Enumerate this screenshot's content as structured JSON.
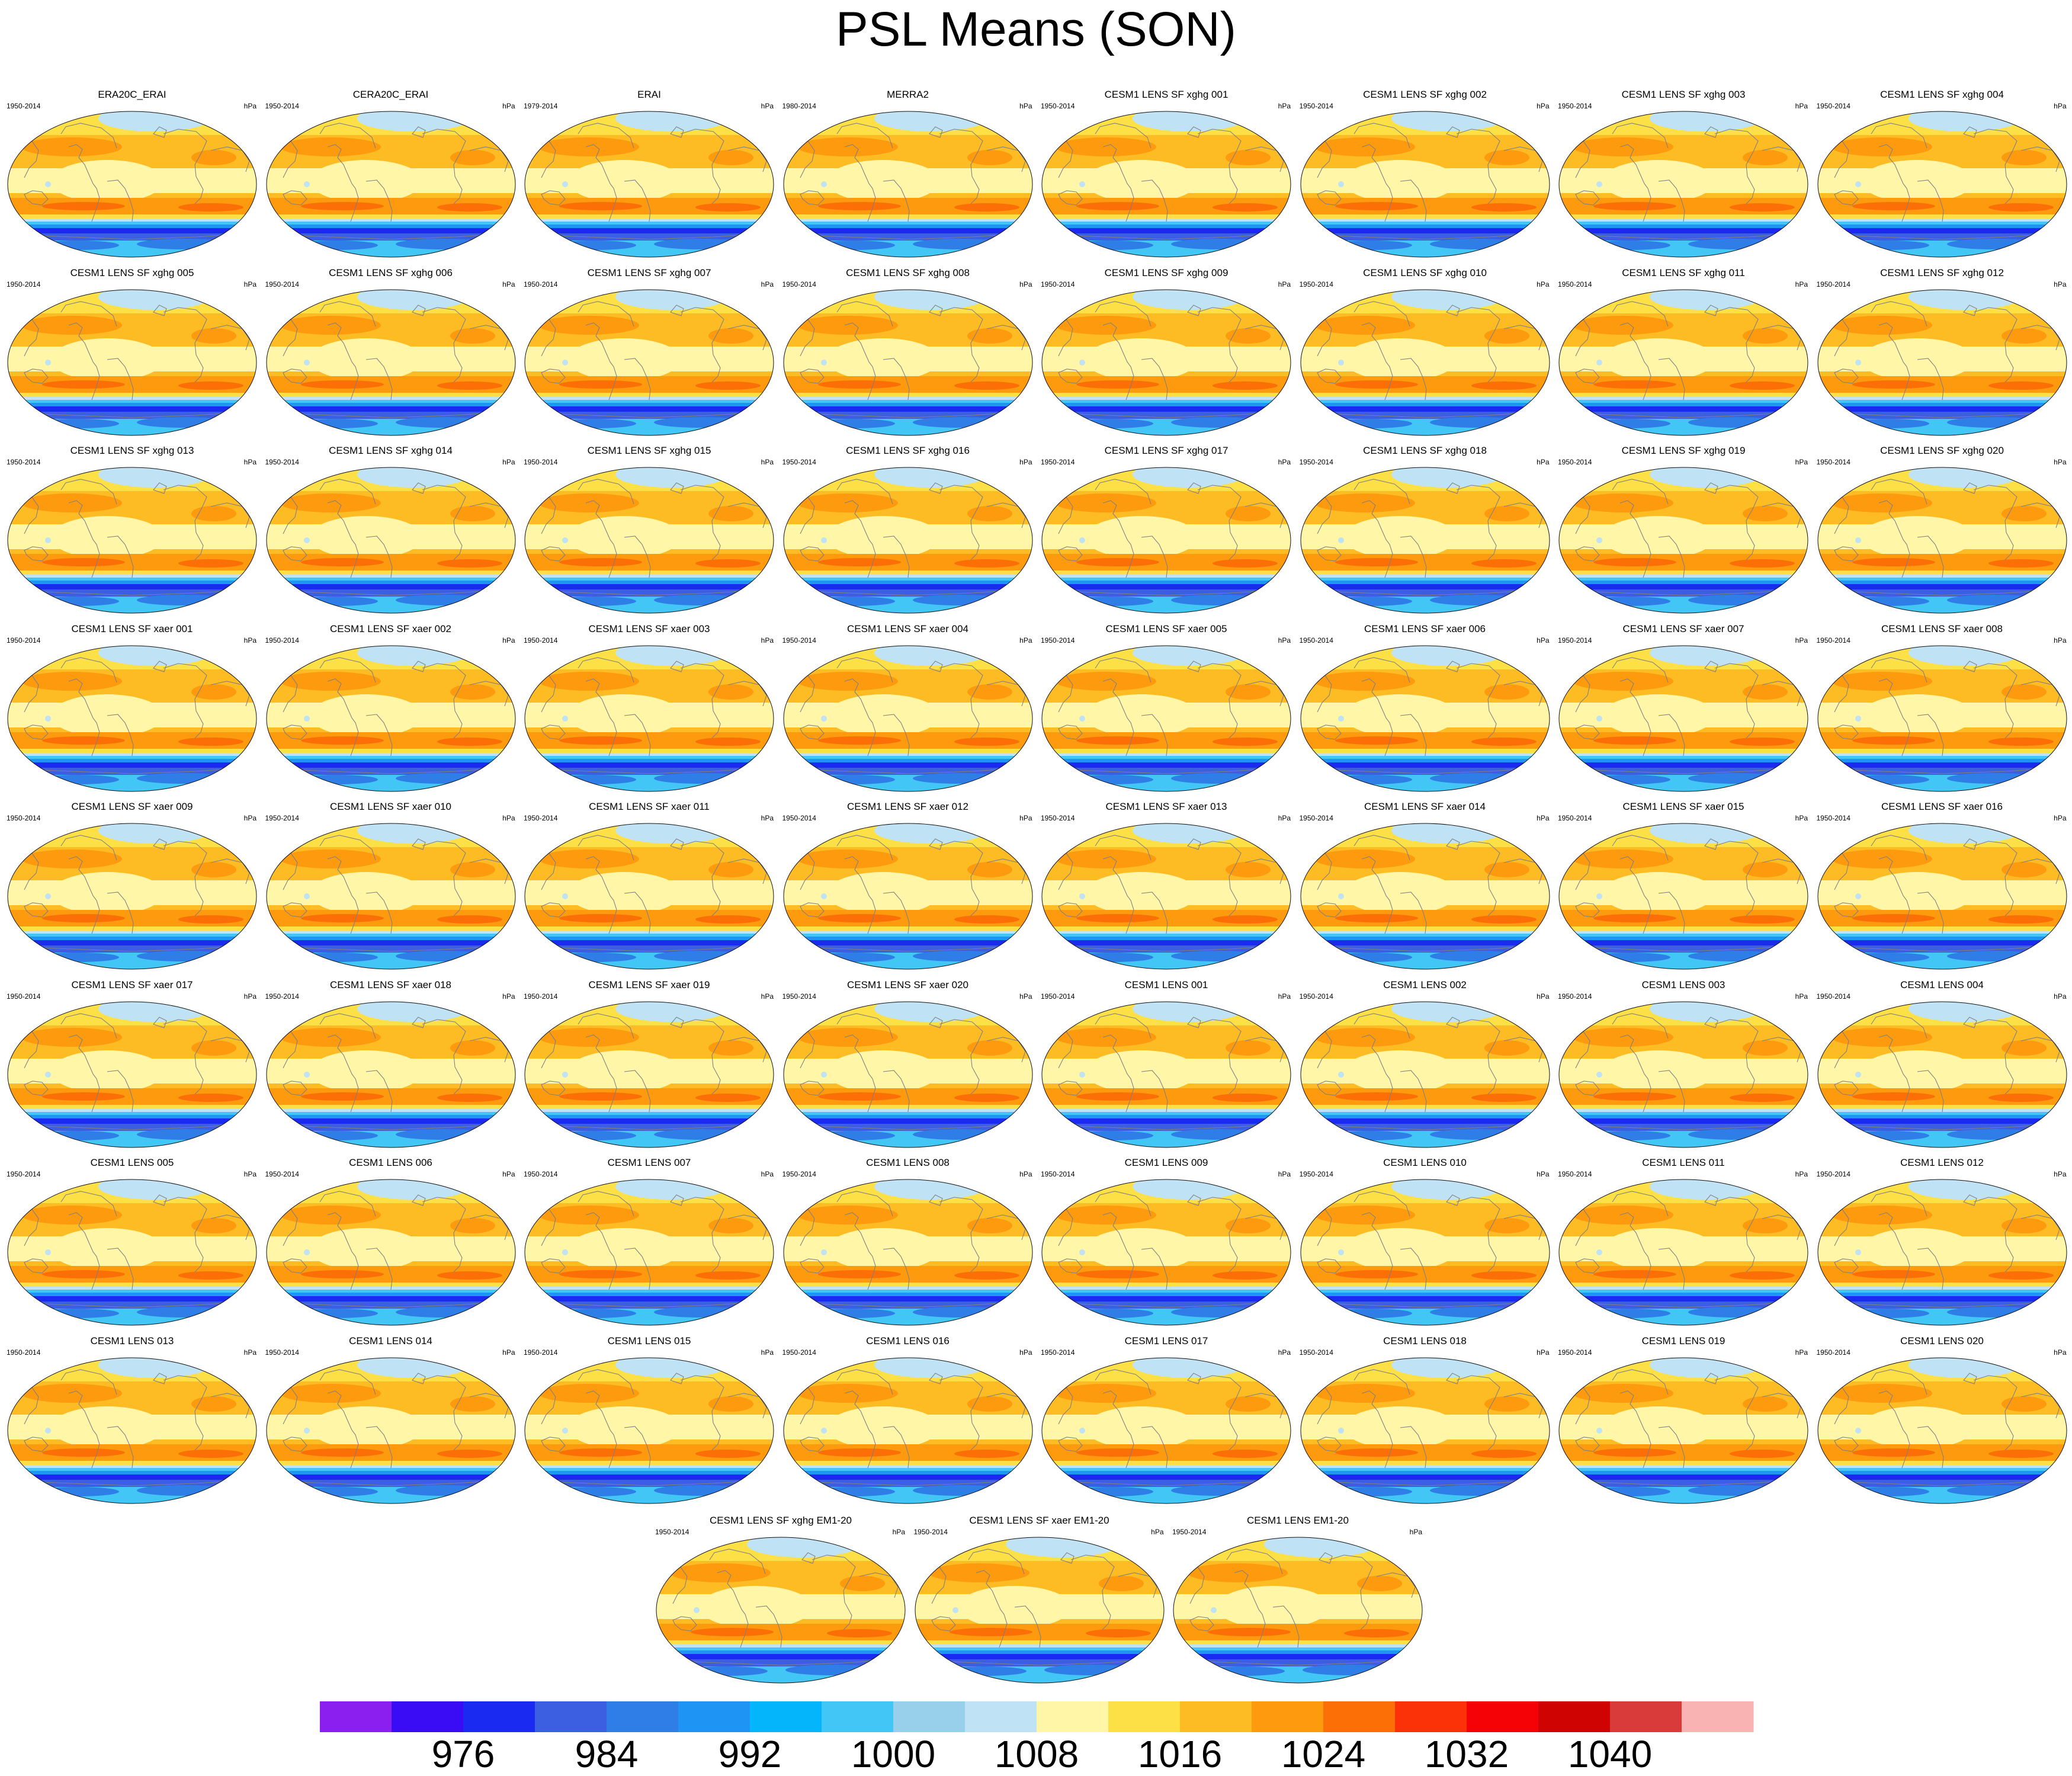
{
  "title": "PSL Means (SON)",
  "chart_data": {
    "type": "heatmap",
    "title": "PSL Means (SON)",
    "units": "hPa",
    "colorbar": {
      "tick_labels": [
        "976",
        "984",
        "992",
        "1000",
        "1008",
        "1016",
        "1024",
        "1032",
        "1040"
      ],
      "tick_values": [
        976,
        984,
        992,
        1000,
        1008,
        1016,
        1024,
        1032,
        1040
      ],
      "colors": [
        "#8a1ff0",
        "#3a0cf5",
        "#1a2af0",
        "#3c5ee0",
        "#2f7de6",
        "#1e94f5",
        "#05b5fb",
        "#42c6f5",
        "#98d0ec",
        "#bfe2f4",
        "#fff6a8",
        "#fde046",
        "#fdbb24",
        "#fd9a0e",
        "#fc6f06",
        "#fb3208",
        "#f40206",
        "#d00303",
        "#d93a3a",
        "#fab3b3"
      ]
    },
    "panels": [
      {
        "name": "ERA20C_ERAI",
        "period": "1950-2014",
        "units": "hPa"
      },
      {
        "name": "CERA20C_ERAI",
        "period": "1950-2014",
        "units": "hPa"
      },
      {
        "name": "ERAI",
        "period": "1979-2014",
        "units": "hPa"
      },
      {
        "name": "MERRA2",
        "period": "1980-2014",
        "units": "hPa"
      },
      {
        "name": "CESM1 LENS SF xghg 001",
        "period": "1950-2014",
        "units": "hPa"
      },
      {
        "name": "CESM1 LENS SF xghg 002",
        "period": "1950-2014",
        "units": "hPa"
      },
      {
        "name": "CESM1 LENS SF xghg 003",
        "period": "1950-2014",
        "units": "hPa"
      },
      {
        "name": "CESM1 LENS SF xghg 004",
        "period": "1950-2014",
        "units": "hPa"
      },
      {
        "name": "CESM1 LENS SF xghg 005",
        "period": "1950-2014",
        "units": "hPa"
      },
      {
        "name": "CESM1 LENS SF xghg 006",
        "period": "1950-2014",
        "units": "hPa"
      },
      {
        "name": "CESM1 LENS SF xghg 007",
        "period": "1950-2014",
        "units": "hPa"
      },
      {
        "name": "CESM1 LENS SF xghg 008",
        "period": "1950-2014",
        "units": "hPa"
      },
      {
        "name": "CESM1 LENS SF xghg 009",
        "period": "1950-2014",
        "units": "hPa"
      },
      {
        "name": "CESM1 LENS SF xghg 010",
        "period": "1950-2014",
        "units": "hPa"
      },
      {
        "name": "CESM1 LENS SF xghg 011",
        "period": "1950-2014",
        "units": "hPa"
      },
      {
        "name": "CESM1 LENS SF xghg 012",
        "period": "1950-2014",
        "units": "hPa"
      },
      {
        "name": "CESM1 LENS SF xghg 013",
        "period": "1950-2014",
        "units": "hPa"
      },
      {
        "name": "CESM1 LENS SF xghg 014",
        "period": "1950-2014",
        "units": "hPa"
      },
      {
        "name": "CESM1 LENS SF xghg 015",
        "period": "1950-2014",
        "units": "hPa"
      },
      {
        "name": "CESM1 LENS SF xghg 016",
        "period": "1950-2014",
        "units": "hPa"
      },
      {
        "name": "CESM1 LENS SF xghg 017",
        "period": "1950-2014",
        "units": "hPa"
      },
      {
        "name": "CESM1 LENS SF xghg 018",
        "period": "1950-2014",
        "units": "hPa"
      },
      {
        "name": "CESM1 LENS SF xghg 019",
        "period": "1950-2014",
        "units": "hPa"
      },
      {
        "name": "CESM1 LENS SF xghg 020",
        "period": "1950-2014",
        "units": "hPa"
      },
      {
        "name": "CESM1 LENS SF xaer 001",
        "period": "1950-2014",
        "units": "hPa"
      },
      {
        "name": "CESM1 LENS SF xaer 002",
        "period": "1950-2014",
        "units": "hPa"
      },
      {
        "name": "CESM1 LENS SF xaer 003",
        "period": "1950-2014",
        "units": "hPa"
      },
      {
        "name": "CESM1 LENS SF xaer 004",
        "period": "1950-2014",
        "units": "hPa"
      },
      {
        "name": "CESM1 LENS SF xaer 005",
        "period": "1950-2014",
        "units": "hPa"
      },
      {
        "name": "CESM1 LENS SF xaer 006",
        "period": "1950-2014",
        "units": "hPa"
      },
      {
        "name": "CESM1 LENS SF xaer 007",
        "period": "1950-2014",
        "units": "hPa"
      },
      {
        "name": "CESM1 LENS SF xaer 008",
        "period": "1950-2014",
        "units": "hPa"
      },
      {
        "name": "CESM1 LENS SF xaer 009",
        "period": "1950-2014",
        "units": "hPa"
      },
      {
        "name": "CESM1 LENS SF xaer 010",
        "period": "1950-2014",
        "units": "hPa"
      },
      {
        "name": "CESM1 LENS SF xaer 011",
        "period": "1950-2014",
        "units": "hPa"
      },
      {
        "name": "CESM1 LENS SF xaer 012",
        "period": "1950-2014",
        "units": "hPa"
      },
      {
        "name": "CESM1 LENS SF xaer 013",
        "period": "1950-2014",
        "units": "hPa"
      },
      {
        "name": "CESM1 LENS SF xaer 014",
        "period": "1950-2014",
        "units": "hPa"
      },
      {
        "name": "CESM1 LENS SF xaer 015",
        "period": "1950-2014",
        "units": "hPa"
      },
      {
        "name": "CESM1 LENS SF xaer 016",
        "period": "1950-2014",
        "units": "hPa"
      },
      {
        "name": "CESM1 LENS SF xaer 017",
        "period": "1950-2014",
        "units": "hPa"
      },
      {
        "name": "CESM1 LENS SF xaer 018",
        "period": "1950-2014",
        "units": "hPa"
      },
      {
        "name": "CESM1 LENS SF xaer 019",
        "period": "1950-2014",
        "units": "hPa"
      },
      {
        "name": "CESM1 LENS SF xaer 020",
        "period": "1950-2014",
        "units": "hPa"
      },
      {
        "name": "CESM1 LENS 001",
        "period": "1950-2014",
        "units": "hPa"
      },
      {
        "name": "CESM1 LENS 002",
        "period": "1950-2014",
        "units": "hPa"
      },
      {
        "name": "CESM1 LENS 003",
        "period": "1950-2014",
        "units": "hPa"
      },
      {
        "name": "CESM1 LENS 004",
        "period": "1950-2014",
        "units": "hPa"
      },
      {
        "name": "CESM1 LENS 005",
        "period": "1950-2014",
        "units": "hPa"
      },
      {
        "name": "CESM1 LENS 006",
        "period": "1950-2014",
        "units": "hPa"
      },
      {
        "name": "CESM1 LENS 007",
        "period": "1950-2014",
        "units": "hPa"
      },
      {
        "name": "CESM1 LENS 008",
        "period": "1950-2014",
        "units": "hPa"
      },
      {
        "name": "CESM1 LENS 009",
        "period": "1950-2014",
        "units": "hPa"
      },
      {
        "name": "CESM1 LENS 010",
        "period": "1950-2014",
        "units": "hPa"
      },
      {
        "name": "CESM1 LENS 011",
        "period": "1950-2014",
        "units": "hPa"
      },
      {
        "name": "CESM1 LENS 012",
        "period": "1950-2014",
        "units": "hPa"
      },
      {
        "name": "CESM1 LENS 013",
        "period": "1950-2014",
        "units": "hPa"
      },
      {
        "name": "CESM1 LENS 014",
        "period": "1950-2014",
        "units": "hPa"
      },
      {
        "name": "CESM1 LENS 015",
        "period": "1950-2014",
        "units": "hPa"
      },
      {
        "name": "CESM1 LENS 016",
        "period": "1950-2014",
        "units": "hPa"
      },
      {
        "name": "CESM1 LENS 017",
        "period": "1950-2014",
        "units": "hPa"
      },
      {
        "name": "CESM1 LENS 018",
        "period": "1950-2014",
        "units": "hPa"
      },
      {
        "name": "CESM1 LENS 019",
        "period": "1950-2014",
        "units": "hPa"
      },
      {
        "name": "CESM1 LENS 020",
        "period": "1950-2014",
        "units": "hPa"
      },
      {
        "name": "CESM1 LENS SF xghg EM1-20",
        "period": "1950-2014",
        "units": "hPa"
      },
      {
        "name": "CESM1 LENS SF xaer EM1-20",
        "period": "1950-2014",
        "units": "hPa"
      },
      {
        "name": "CESM1 LENS EM1-20",
        "period": "1950-2014",
        "units": "hPa"
      }
    ]
  }
}
